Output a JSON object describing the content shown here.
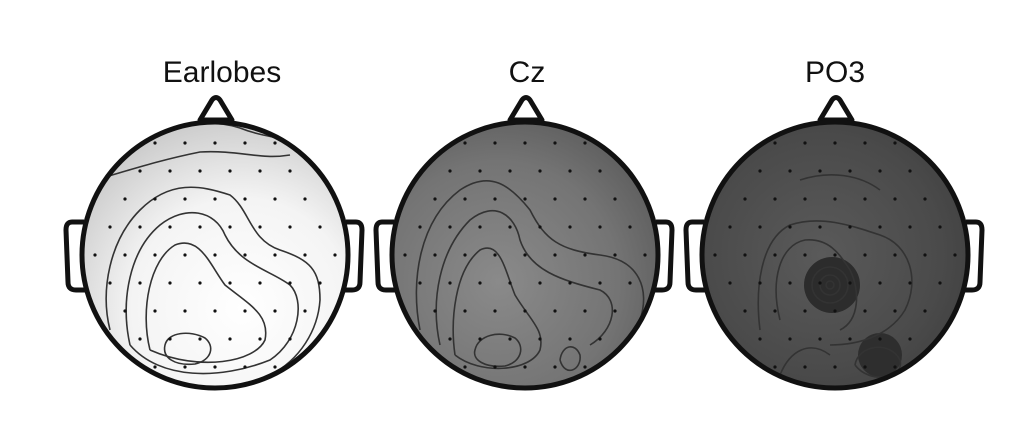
{
  "panels": [
    {
      "title": "Earlobes"
    },
    {
      "title": "Cz"
    },
    {
      "title": "PO3"
    }
  ]
}
